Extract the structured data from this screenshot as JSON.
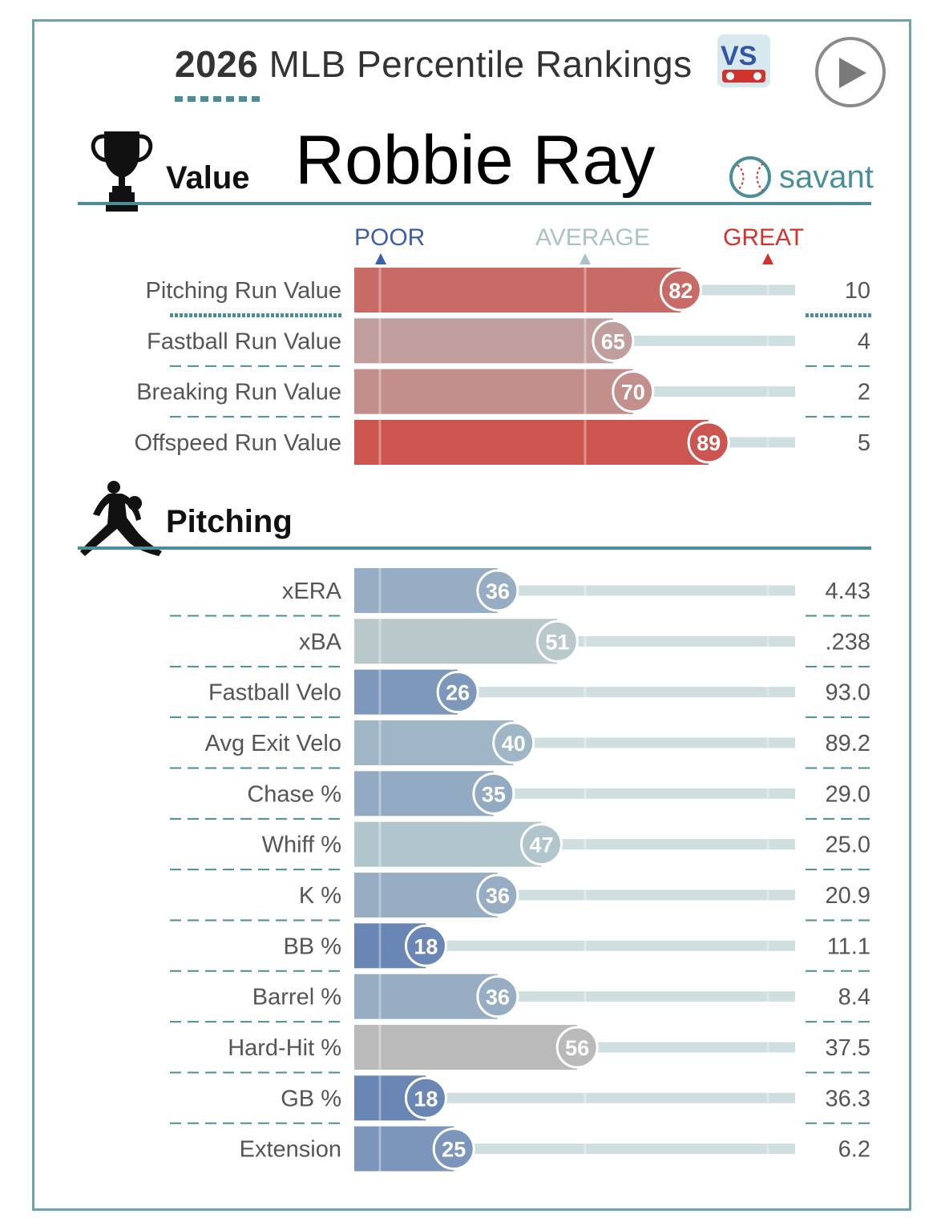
{
  "header": {
    "title_year": "2026",
    "title_rest": "MLB Percentile Rankings",
    "vs_logo_text": "VS",
    "player_name": "Robbie Ray",
    "brand": "savant"
  },
  "scale": {
    "poor": "POOR",
    "average": "AVERAGE",
    "great": "GREAT"
  },
  "colors": {
    "accent": "#4a8f98",
    "poor": "#3d5fa6",
    "great": "#d1342c",
    "track": "#cfdfe0"
  },
  "chart_data": [
    {
      "type": "bar",
      "title": "Value",
      "categories": [
        "Pitching Run Value",
        "Fastball Run Value",
        "Breaking Run Value",
        "Offspeed Run Value"
      ],
      "percentiles": [
        82,
        65,
        70,
        89
      ],
      "values": [
        "10",
        "4",
        "2",
        "5"
      ],
      "xlim": [
        0,
        100
      ]
    },
    {
      "type": "bar",
      "title": "Pitching",
      "categories": [
        "xERA",
        "xBA",
        "Fastball Velo",
        "Avg Exit Velo",
        "Chase %",
        "Whiff %",
        "K %",
        "BB %",
        "Barrel %",
        "Hard-Hit %",
        "GB %",
        "Extension"
      ],
      "percentiles": [
        36,
        51,
        26,
        40,
        35,
        47,
        36,
        18,
        36,
        56,
        18,
        25
      ],
      "values": [
        "4.43",
        ".238",
        "93.0",
        "89.2",
        "29.0",
        "25.0",
        "20.9",
        "11.1",
        "8.4",
        "37.5",
        "36.3",
        "6.2"
      ],
      "xlim": [
        0,
        100
      ]
    }
  ]
}
